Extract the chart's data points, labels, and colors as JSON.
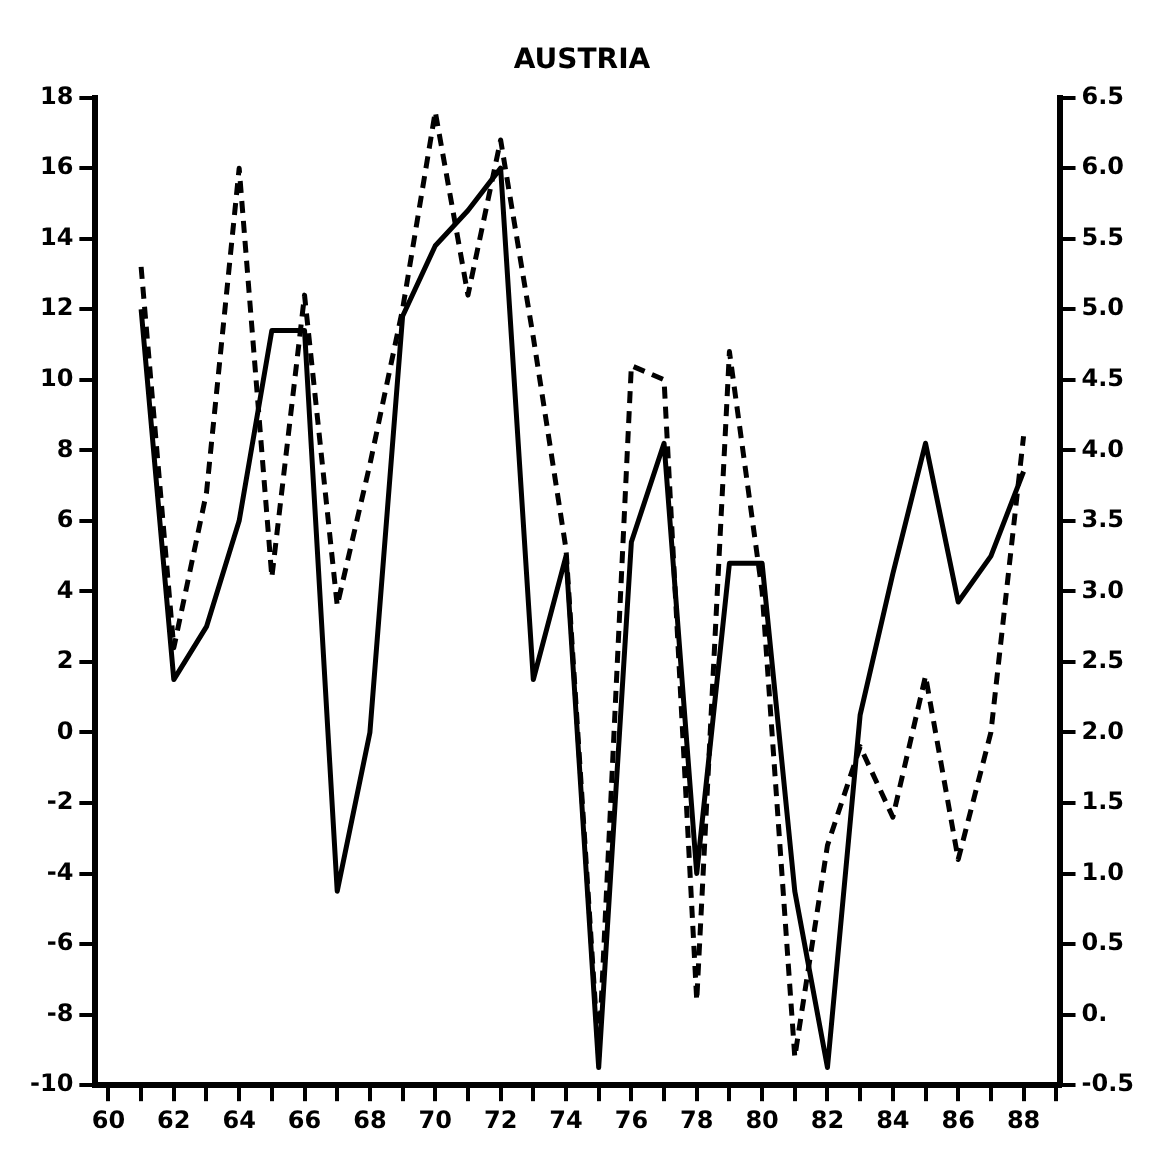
{
  "chart_data": {
    "type": "line",
    "title": "AUSTRIA",
    "marker": "none",
    "grid": false,
    "legend": false,
    "x": [
      61,
      62,
      63,
      64,
      65,
      66,
      67,
      68,
      69,
      70,
      71,
      72,
      73,
      74,
      75,
      76,
      77,
      78,
      79,
      80,
      81,
      82,
      83,
      84,
      85,
      86,
      87,
      88
    ],
    "xlim": [
      59.6,
      89.1
    ],
    "xticks": [
      60,
      {
        "value": 61,
        "label": null
      },
      62,
      {
        "value": 63,
        "label": null
      },
      64,
      {
        "value": 65,
        "label": null
      },
      66,
      {
        "value": 67,
        "label": null
      },
      68,
      {
        "value": 69,
        "label": null
      },
      70,
      {
        "value": 71,
        "label": null
      },
      72,
      {
        "value": 73,
        "label": null
      },
      74,
      {
        "value": 75,
        "label": null
      },
      76,
      {
        "value": 77,
        "label": null
      },
      78,
      {
        "value": 79,
        "label": null
      },
      80,
      {
        "value": 81,
        "label": null
      },
      82,
      {
        "value": 83,
        "label": null
      },
      84,
      {
        "value": 85,
        "label": null
      },
      86,
      {
        "value": 87,
        "label": null
      },
      88,
      {
        "value": 89,
        "label": null
      }
    ],
    "ylim": [
      -10,
      18
    ],
    "yticks": [
      -10,
      -8,
      -6,
      -4,
      -2,
      0,
      2,
      4,
      6,
      8,
      10,
      12,
      14,
      16,
      18
    ],
    "y2lim": [
      -0.5,
      6.5
    ],
    "y2ticks": [
      {
        "value": -0.5,
        "label": "-0.5"
      },
      {
        "value": 0,
        "label": "0."
      },
      {
        "value": 0.5,
        "label": "0.5"
      },
      {
        "value": 1,
        "label": "1.0"
      },
      {
        "value": 1.5,
        "label": "1.5"
      },
      {
        "value": 2,
        "label": "2.0"
      },
      {
        "value": 2.5,
        "label": "2.5"
      },
      {
        "value": 3,
        "label": "3.0"
      },
      {
        "value": 3.5,
        "label": "3.5"
      },
      {
        "value": 4,
        "label": "4.0"
      },
      {
        "value": 4.5,
        "label": "4.5"
      },
      {
        "value": 5,
        "label": "5.0"
      },
      {
        "value": 5.5,
        "label": "5.5"
      },
      {
        "value": 6,
        "label": "6.0"
      },
      {
        "value": 6.5,
        "label": "6.5"
      }
    ],
    "series": [
      {
        "color": "#000000",
        "line_style": "solid",
        "values": [
          12,
          1.5,
          3,
          6,
          11.4,
          11.4,
          -4.5,
          0,
          11.8,
          13.8,
          14.8,
          16,
          1.5,
          5,
          -9.5,
          5.4,
          8.2,
          -4,
          4.8,
          4.8,
          -4.5,
          -9.5,
          0.5,
          4.5,
          8.2,
          3.7,
          5,
          7.4
        ]
      },
      {
        "color": "#000000",
        "line_style": "dashed",
        "axis": "y2",
        "values": [
          5.3,
          2.6,
          3.7,
          6,
          3.1,
          5.1,
          2.9,
          3.9,
          5,
          6.4,
          5.1,
          6.2,
          4.8,
          3.3,
          -0.3,
          4.6,
          4.5,
          0.1,
          4.7,
          3,
          -0.3,
          1.2,
          1.9,
          1.4,
          2.4,
          1.1,
          2,
          4.1
        ]
      }
    ]
  }
}
